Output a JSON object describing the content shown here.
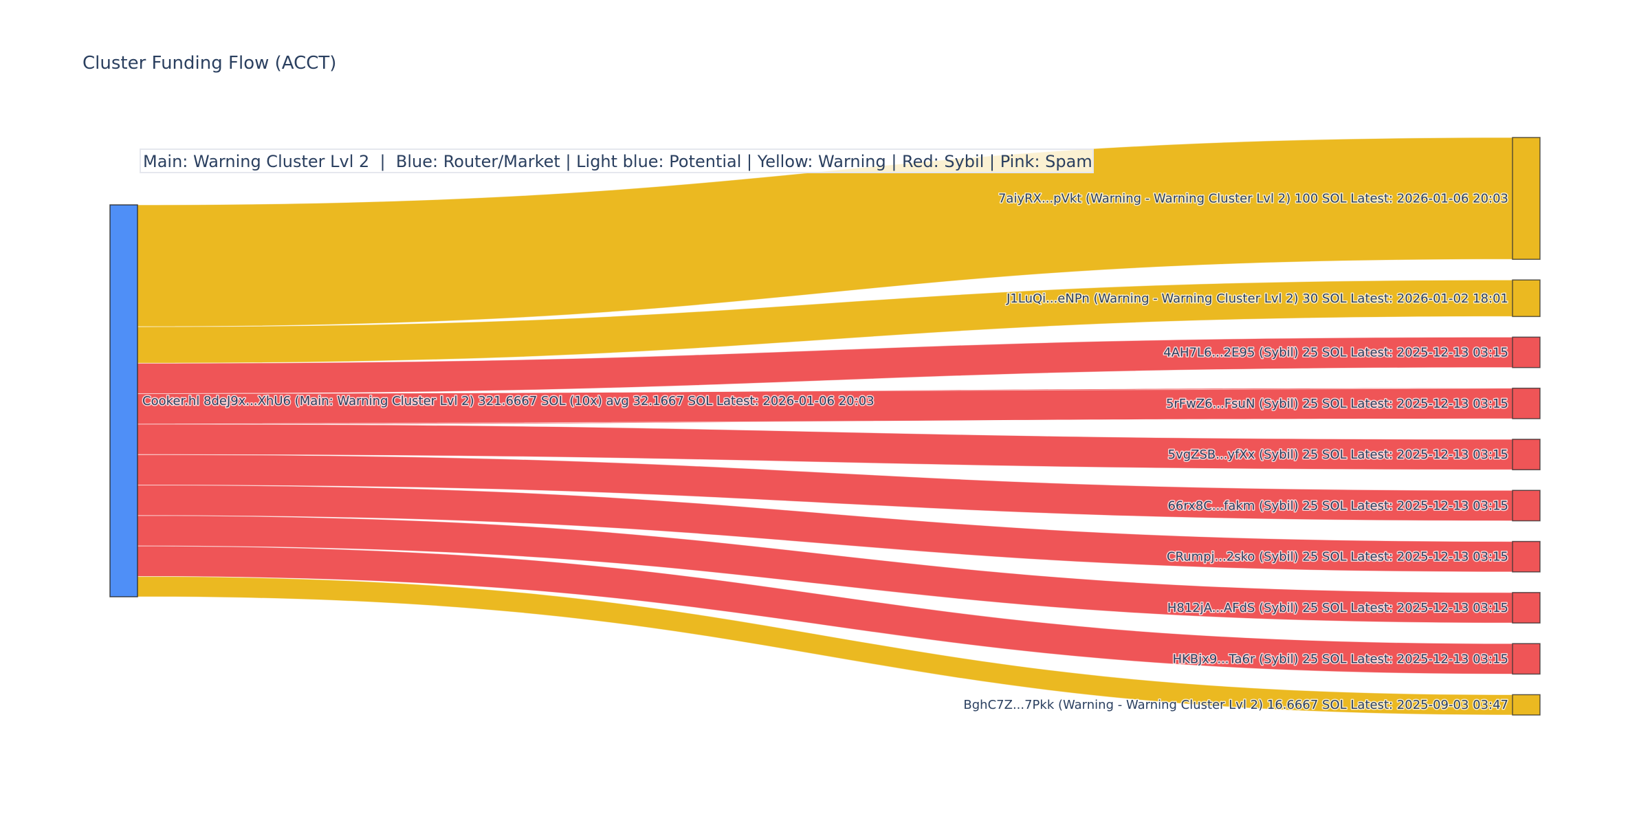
{
  "chart_data": {
    "type": "sankey",
    "title": "Cluster Funding Flow (ACCT)",
    "annotation": "Main: Warning Cluster Lvl 2  |  Blue: Router/Market | Light blue: Potential | Yellow: Warning | Red: Sybil | Pink: Spam",
    "unit": "SOL",
    "colors": {
      "blue": "#4f8ff7",
      "yellow": "#ebb921",
      "red": "#ef5557",
      "text": "#2a3f5f"
    },
    "source": {
      "label": "Cooker.hl 8deJ9x...XhU6 (Main: Warning Cluster Lvl 2) 321.6667 SOL (10x) avg 32.1667 SOL Latest: 2026-01-06 20:03",
      "value": 321.6667,
      "color": "blue"
    },
    "targets": [
      {
        "label": "7aiyRX...pVkt (Warning - Warning Cluster Lvl 2) 100 SOL Latest: 2026-01-06 20:03",
        "value": 100,
        "color": "yellow"
      },
      {
        "label": "J1LuQi...eNPn (Warning - Warning Cluster Lvl 2) 30 SOL Latest: 2026-01-02 18:01",
        "value": 30,
        "color": "yellow"
      },
      {
        "label": "4AH7L6...2E95 (Sybil) 25 SOL Latest: 2025-12-13 03:15",
        "value": 25,
        "color": "red"
      },
      {
        "label": "5rFwZ6...FsuN (Sybil) 25 SOL Latest: 2025-12-13 03:15",
        "value": 25,
        "color": "red"
      },
      {
        "label": "5vgZSB...yfXx (Sybil) 25 SOL Latest: 2025-12-13 03:15",
        "value": 25,
        "color": "red"
      },
      {
        "label": "66rx8C...fakm (Sybil) 25 SOL Latest: 2025-12-13 03:15",
        "value": 25,
        "color": "red"
      },
      {
        "label": "CRumpj...2sko (Sybil) 25 SOL Latest: 2025-12-13 03:15",
        "value": 25,
        "color": "red"
      },
      {
        "label": "H812jA...AFdS (Sybil) 25 SOL Latest: 2025-12-13 03:15",
        "value": 25,
        "color": "red"
      },
      {
        "label": "HKBjx9...Ta6r (Sybil) 25 SOL Latest: 2025-12-13 03:15",
        "value": 25,
        "color": "red"
      },
      {
        "label": "BghC7Z...7Pkk (Warning - Warning Cluster Lvl 2) 16.6667 SOL Latest: 2025-09-03 03:47",
        "value": 16.6667,
        "color": "yellow"
      }
    ]
  }
}
